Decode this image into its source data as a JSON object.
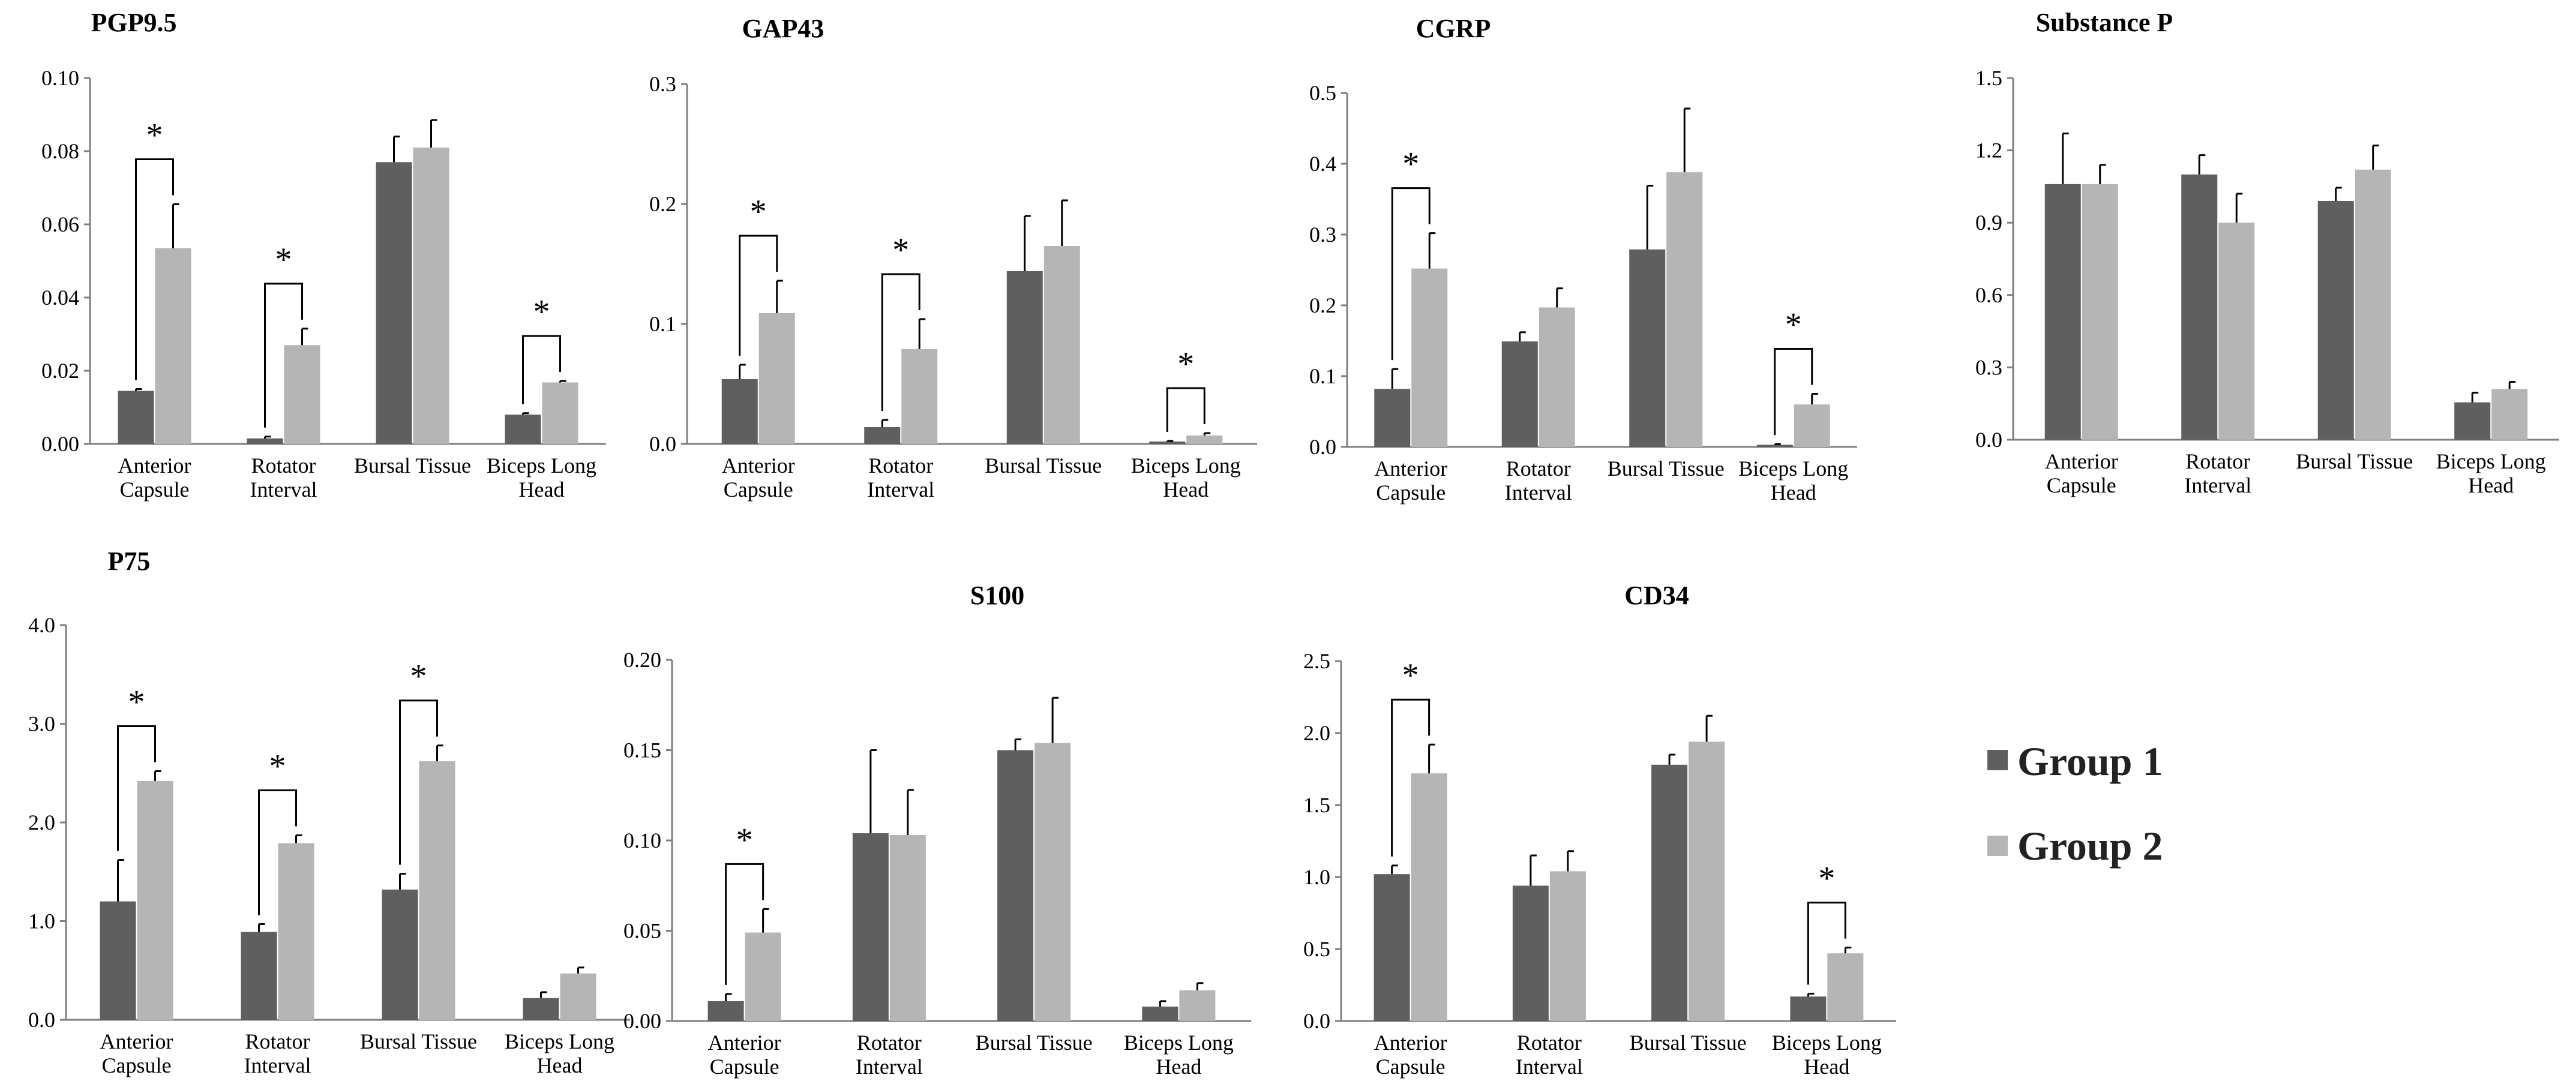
{
  "legend": [
    {
      "name": "Group 1",
      "color": "#5f5f5f"
    },
    {
      "name": "Group 2",
      "color": "#b5b5b5"
    }
  ],
  "chart_data": [
    {
      "type": "bar",
      "title": "PGP9.5",
      "categories": [
        [
          "Anterior",
          "Capsule"
        ],
        [
          "Rotator",
          "Interval"
        ],
        [
          "Bursal Tissue"
        ],
        [
          "Biceps Long",
          "Head"
        ]
      ],
      "ylim": [
        0,
        0.1
      ],
      "yticks": [
        "0.00",
        "0.02",
        "0.04",
        "0.06",
        "0.08",
        "0.10"
      ],
      "series": [
        {
          "name": "Group 1",
          "values": [
            0.0145,
            0.0015,
            0.077,
            0.008
          ],
          "errors": [
            0.0005,
            0.0005,
            0.007,
            0.0004
          ]
        },
        {
          "name": "Group 2",
          "values": [
            0.0535,
            0.027,
            0.081,
            0.0168
          ],
          "errors": [
            0.012,
            0.0045,
            0.0075,
            0.0004
          ]
        }
      ],
      "significant": [
        0,
        1,
        3
      ],
      "star": "*"
    },
    {
      "type": "bar",
      "title": "GAP43",
      "categories": [
        [
          "Anterior",
          "Capsule"
        ],
        [
          "Rotator",
          "Interval"
        ],
        [
          "Bursal Tissue"
        ],
        [
          "Biceps Long",
          "Head"
        ]
      ],
      "ylim": [
        0,
        0.3
      ],
      "yticks": [
        "0.0",
        "0.1",
        "0.2",
        "0.3"
      ],
      "series": [
        {
          "name": "Group 1",
          "values": [
            0.054,
            0.014,
            0.144,
            0.002
          ],
          "errors": [
            0.012,
            0.006,
            0.046,
            0.0005
          ]
        },
        {
          "name": "Group 2",
          "values": [
            0.109,
            0.079,
            0.165,
            0.007
          ],
          "errors": [
            0.027,
            0.025,
            0.038,
            0.002
          ]
        }
      ],
      "significant": [
        0,
        1,
        3
      ],
      "star": "*"
    },
    {
      "type": "bar",
      "title": "CGRP",
      "categories": [
        [
          "Anterior",
          "Capsule"
        ],
        [
          "Rotator",
          "Interval"
        ],
        [
          "Bursal Tissue"
        ],
        [
          "Biceps Long",
          "Head"
        ]
      ],
      "ylim": [
        0,
        0.5
      ],
      "yticks": [
        "0.0",
        "0.1",
        "0.2",
        "0.3",
        "0.4",
        "0.5"
      ],
      "series": [
        {
          "name": "Group 1",
          "values": [
            0.082,
            0.149,
            0.279,
            0.003
          ],
          "errors": [
            0.028,
            0.013,
            0.09,
            0.001
          ]
        },
        {
          "name": "Group 2",
          "values": [
            0.252,
            0.197,
            0.388,
            0.06
          ],
          "errors": [
            0.05,
            0.027,
            0.09,
            0.015
          ]
        }
      ],
      "significant": [
        0,
        3
      ],
      "star": "*"
    },
    {
      "type": "bar",
      "title": "Substance P",
      "categories": [
        [
          "Anterior",
          "Capsule"
        ],
        [
          "Rotator",
          "Interval"
        ],
        [
          "Bursal Tissue"
        ],
        [
          "Biceps Long",
          "Head"
        ]
      ],
      "ylim": [
        0,
        1.5
      ],
      "yticks": [
        "0.0",
        "0.3",
        "0.6",
        "0.9",
        "1.2",
        "1.5"
      ],
      "series": [
        {
          "name": "Group 1",
          "values": [
            1.06,
            1.1,
            0.99,
            0.155
          ],
          "errors": [
            0.21,
            0.08,
            0.055,
            0.04
          ]
        },
        {
          "name": "Group 2",
          "values": [
            1.06,
            0.9,
            1.12,
            0.21
          ],
          "errors": [
            0.08,
            0.12,
            0.1,
            0.03
          ]
        }
      ],
      "significant": [],
      "star": "*"
    },
    {
      "type": "bar",
      "title": "P75",
      "categories": [
        [
          "Anterior",
          "Capsule"
        ],
        [
          "Rotator",
          "Interval"
        ],
        [
          "Bursal Tissue"
        ],
        [
          "Biceps Long",
          "Head"
        ]
      ],
      "ylim": [
        0,
        4.0
      ],
      "yticks": [
        "0.0",
        "1.0",
        "2.0",
        "3.0",
        "4.0"
      ],
      "series": [
        {
          "name": "Group 1",
          "values": [
            1.2,
            0.89,
            1.32,
            0.22
          ],
          "errors": [
            0.42,
            0.08,
            0.16,
            0.06
          ]
        },
        {
          "name": "Group 2",
          "values": [
            2.42,
            1.79,
            2.62,
            0.47
          ],
          "errors": [
            0.1,
            0.08,
            0.16,
            0.06
          ]
        }
      ],
      "significant": [
        0,
        1,
        2
      ],
      "star": "*"
    },
    {
      "type": "bar",
      "title": "S100",
      "categories": [
        [
          "Anterior",
          "Capsule"
        ],
        [
          "Rotator",
          "Interval"
        ],
        [
          "Bursal Tissue"
        ],
        [
          "Biceps Long",
          "Head"
        ]
      ],
      "ylim": [
        0,
        0.2
      ],
      "yticks": [
        "0.00",
        "0.05",
        "0.10",
        "0.15",
        "0.20"
      ],
      "series": [
        {
          "name": "Group 1",
          "values": [
            0.011,
            0.104,
            0.15,
            0.008
          ],
          "errors": [
            0.004,
            0.046,
            0.006,
            0.003
          ]
        },
        {
          "name": "Group 2",
          "values": [
            0.049,
            0.103,
            0.154,
            0.017
          ],
          "errors": [
            0.013,
            0.025,
            0.025,
            0.004
          ]
        }
      ],
      "significant": [
        0
      ],
      "star": "*"
    },
    {
      "type": "bar",
      "title": "CD34",
      "categories": [
        [
          "Anterior",
          "Capsule"
        ],
        [
          "Rotator",
          "Interval"
        ],
        [
          "Bursal Tissue"
        ],
        [
          "Biceps Long",
          "Head"
        ]
      ],
      "ylim": [
        0,
        2.5
      ],
      "yticks": [
        "0.0",
        "0.5",
        "1.0",
        "1.5",
        "2.0",
        "2.5"
      ],
      "series": [
        {
          "name": "Group 1",
          "values": [
            1.02,
            0.94,
            1.78,
            0.17
          ],
          "errors": [
            0.06,
            0.21,
            0.07,
            0.02
          ]
        },
        {
          "name": "Group 2",
          "values": [
            1.72,
            1.04,
            1.94,
            0.47
          ],
          "errors": [
            0.2,
            0.14,
            0.18,
            0.04
          ]
        }
      ],
      "significant": [
        0,
        3
      ],
      "star": "*"
    }
  ]
}
